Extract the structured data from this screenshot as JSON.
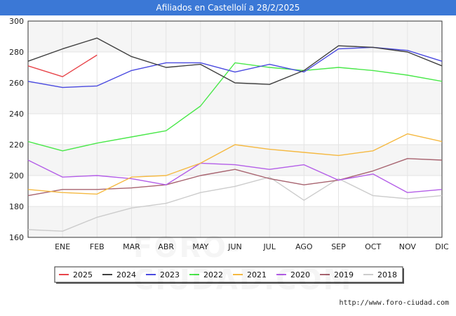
{
  "title": "Afiliados en Castellolí a 28/2/2025",
  "credit": "http://www.foro-ciudad.com",
  "watermark": "FORO-CIUDAD.COM",
  "chart_data": {
    "type": "line",
    "title": "Afiliados en Castellolí a 28/2/2025",
    "xlabel": "",
    "ylabel": "",
    "x_positions": [
      "",
      "ENE",
      "FEB",
      "MAR",
      "ABR",
      "MAY",
      "JUN",
      "JUL",
      "AGO",
      "SEP",
      "OCT",
      "NOV",
      "DIC"
    ],
    "tick_labels": [
      "ENE",
      "FEB",
      "MAR",
      "ABR",
      "MAY",
      "JUN",
      "JUL",
      "AGO",
      "SEP",
      "OCT",
      "NOV",
      "DIC"
    ],
    "ylim": [
      160,
      300
    ],
    "yticks": [
      160,
      180,
      200,
      220,
      240,
      260,
      280,
      300
    ],
    "grid": true,
    "legend_position": "bottom",
    "series": [
      {
        "name": "2025",
        "color": "#e8454a",
        "values": [
          271,
          264,
          278
        ]
      },
      {
        "name": "2024",
        "color": "#404040",
        "values": [
          274,
          282,
          289,
          277,
          270,
          272,
          260,
          259,
          268,
          284,
          283,
          280,
          271
        ]
      },
      {
        "name": "2023",
        "color": "#4a4ae0",
        "values": [
          261,
          257,
          258,
          268,
          273,
          273,
          267,
          272,
          267,
          282,
          283,
          281,
          274
        ]
      },
      {
        "name": "2022",
        "color": "#4ae84a",
        "values": [
          222,
          216,
          221,
          225,
          229,
          245,
          273,
          270,
          268,
          270,
          268,
          265,
          261
        ]
      },
      {
        "name": "2021",
        "color": "#f5b941",
        "values": [
          191,
          189,
          188,
          199,
          200,
          208,
          220,
          217,
          215,
          213,
          216,
          227,
          222
        ]
      },
      {
        "name": "2020",
        "color": "#b45ee8",
        "values": [
          210,
          199,
          200,
          198,
          194,
          208,
          207,
          204,
          207,
          197,
          201,
          189,
          191
        ]
      },
      {
        "name": "2019",
        "color": "#a86470",
        "values": [
          187,
          191,
          191,
          192,
          194,
          200,
          204,
          198,
          194,
          197,
          203,
          211,
          210
        ]
      },
      {
        "name": "2018",
        "color": "#cccccc",
        "values": [
          165,
          164,
          173,
          179,
          182,
          189,
          193,
          199,
          184,
          198,
          187,
          185,
          187
        ]
      }
    ]
  }
}
